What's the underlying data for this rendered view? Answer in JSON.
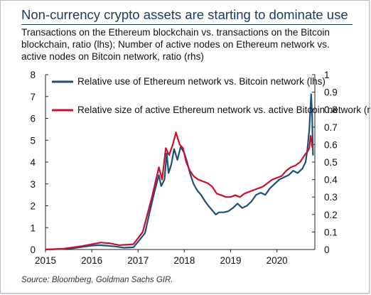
{
  "title": "Non-currency crypto assets are starting to dominate use",
  "subtitle": "Transactions on the Ethereum blockchain vs. transactions on the Bitcoin blockchain, ratio (lhs); Number of active nodes on Ethereum network vs. active nodes on Bitcoin network, ratio (rhs)",
  "source": "Source: Bloomberg, Goldman Sachs GIR.",
  "chart_data": {
    "type": "line",
    "title": "Non-currency crypto assets are starting to dominate use",
    "xlim": [
      2015.0,
      2020.82
    ],
    "x_ticks": [
      "2015",
      "2016",
      "2017",
      "2018",
      "2019",
      "2020"
    ],
    "ylim_left": [
      0,
      8
    ],
    "ylim_right": [
      0,
      1
    ],
    "y_ticks_left": [
      "0",
      "1",
      "2",
      "3",
      "4",
      "5",
      "6",
      "7",
      "8"
    ],
    "y_ticks_right": [
      "0",
      "0.1",
      "0.2",
      "0.3",
      "0.4",
      "0.5",
      "0.6",
      "0.7",
      "0.8",
      "0.9",
      "1"
    ],
    "grid": false,
    "legend_position": "top-left",
    "colors": {
      "series1": "#1f4e79",
      "series2": "#c8102e",
      "axis": "#222222"
    },
    "series": [
      {
        "name": "Relative use of Ethereum network vs. Bitcoin network (lhs)",
        "axis": "left",
        "points": [
          [
            2015.0,
            0.0
          ],
          [
            2015.3,
            0.02
          ],
          [
            2015.6,
            0.06
          ],
          [
            2015.8,
            0.12
          ],
          [
            2016.0,
            0.18
          ],
          [
            2016.15,
            0.2
          ],
          [
            2016.3,
            0.18
          ],
          [
            2016.5,
            0.14
          ],
          [
            2016.7,
            0.08
          ],
          [
            2016.9,
            0.1
          ],
          [
            2017.0,
            0.35
          ],
          [
            2017.15,
            0.75
          ],
          [
            2017.25,
            1.7
          ],
          [
            2017.35,
            2.6
          ],
          [
            2017.45,
            3.4
          ],
          [
            2017.5,
            2.9
          ],
          [
            2017.57,
            3.2
          ],
          [
            2017.62,
            4.4
          ],
          [
            2017.66,
            3.5
          ],
          [
            2017.72,
            3.9
          ],
          [
            2017.78,
            4.6
          ],
          [
            2017.85,
            4.1
          ],
          [
            2017.92,
            4.7
          ],
          [
            2018.0,
            4.4
          ],
          [
            2018.06,
            4.0
          ],
          [
            2018.12,
            3.5
          ],
          [
            2018.2,
            3.0
          ],
          [
            2018.28,
            2.7
          ],
          [
            2018.36,
            2.5
          ],
          [
            2018.45,
            2.2
          ],
          [
            2018.52,
            2.0
          ],
          [
            2018.6,
            1.8
          ],
          [
            2018.68,
            1.6
          ],
          [
            2018.75,
            1.7
          ],
          [
            2018.85,
            1.7
          ],
          [
            2018.95,
            1.75
          ],
          [
            2019.05,
            1.9
          ],
          [
            2019.15,
            2.1
          ],
          [
            2019.25,
            1.9
          ],
          [
            2019.35,
            2.0
          ],
          [
            2019.45,
            2.2
          ],
          [
            2019.55,
            2.5
          ],
          [
            2019.65,
            2.6
          ],
          [
            2019.75,
            2.5
          ],
          [
            2019.85,
            2.8
          ],
          [
            2019.95,
            3.0
          ],
          [
            2020.05,
            3.2
          ],
          [
            2020.15,
            3.3
          ],
          [
            2020.25,
            3.4
          ],
          [
            2020.35,
            3.6
          ],
          [
            2020.45,
            3.5
          ],
          [
            2020.55,
            3.7
          ],
          [
            2020.62,
            4.0
          ],
          [
            2020.66,
            4.6
          ],
          [
            2020.7,
            5.5
          ],
          [
            2020.74,
            7.1
          ],
          [
            2020.76,
            6.2
          ],
          [
            2020.78,
            4.3
          ]
        ]
      },
      {
        "name": "Relative size of active Ethereum network vs. active Bitcoin network (rhs)",
        "axis": "right",
        "points": [
          [
            2015.0,
            0.0
          ],
          [
            2015.4,
            0.005
          ],
          [
            2015.8,
            0.02
          ],
          [
            2016.0,
            0.03
          ],
          [
            2016.2,
            0.04
          ],
          [
            2016.4,
            0.035
          ],
          [
            2016.6,
            0.025
          ],
          [
            2016.9,
            0.03
          ],
          [
            2017.1,
            0.1
          ],
          [
            2017.3,
            0.3
          ],
          [
            2017.45,
            0.47
          ],
          [
            2017.52,
            0.4
          ],
          [
            2017.6,
            0.58
          ],
          [
            2017.67,
            0.54
          ],
          [
            2017.75,
            0.6
          ],
          [
            2017.82,
            0.67
          ],
          [
            2017.9,
            0.6
          ],
          [
            2017.97,
            0.58
          ],
          [
            2018.04,
            0.5
          ],
          [
            2018.12,
            0.45
          ],
          [
            2018.2,
            0.42
          ],
          [
            2018.3,
            0.4
          ],
          [
            2018.4,
            0.39
          ],
          [
            2018.5,
            0.38
          ],
          [
            2018.6,
            0.36
          ],
          [
            2018.7,
            0.32
          ],
          [
            2018.8,
            0.31
          ],
          [
            2018.9,
            0.3
          ],
          [
            2019.0,
            0.3
          ],
          [
            2019.1,
            0.31
          ],
          [
            2019.2,
            0.3
          ],
          [
            2019.3,
            0.32
          ],
          [
            2019.4,
            0.33
          ],
          [
            2019.5,
            0.34
          ],
          [
            2019.6,
            0.35
          ],
          [
            2019.7,
            0.36
          ],
          [
            2019.8,
            0.38
          ],
          [
            2019.9,
            0.4
          ],
          [
            2020.0,
            0.41
          ],
          [
            2020.1,
            0.42
          ],
          [
            2020.2,
            0.45
          ],
          [
            2020.3,
            0.47
          ],
          [
            2020.4,
            0.48
          ],
          [
            2020.5,
            0.5
          ],
          [
            2020.6,
            0.54
          ],
          [
            2020.66,
            0.56
          ],
          [
            2020.7,
            0.58
          ],
          [
            2020.73,
            0.65
          ],
          [
            2020.75,
            0.62
          ],
          [
            2020.77,
            0.58
          ]
        ]
      }
    ]
  }
}
